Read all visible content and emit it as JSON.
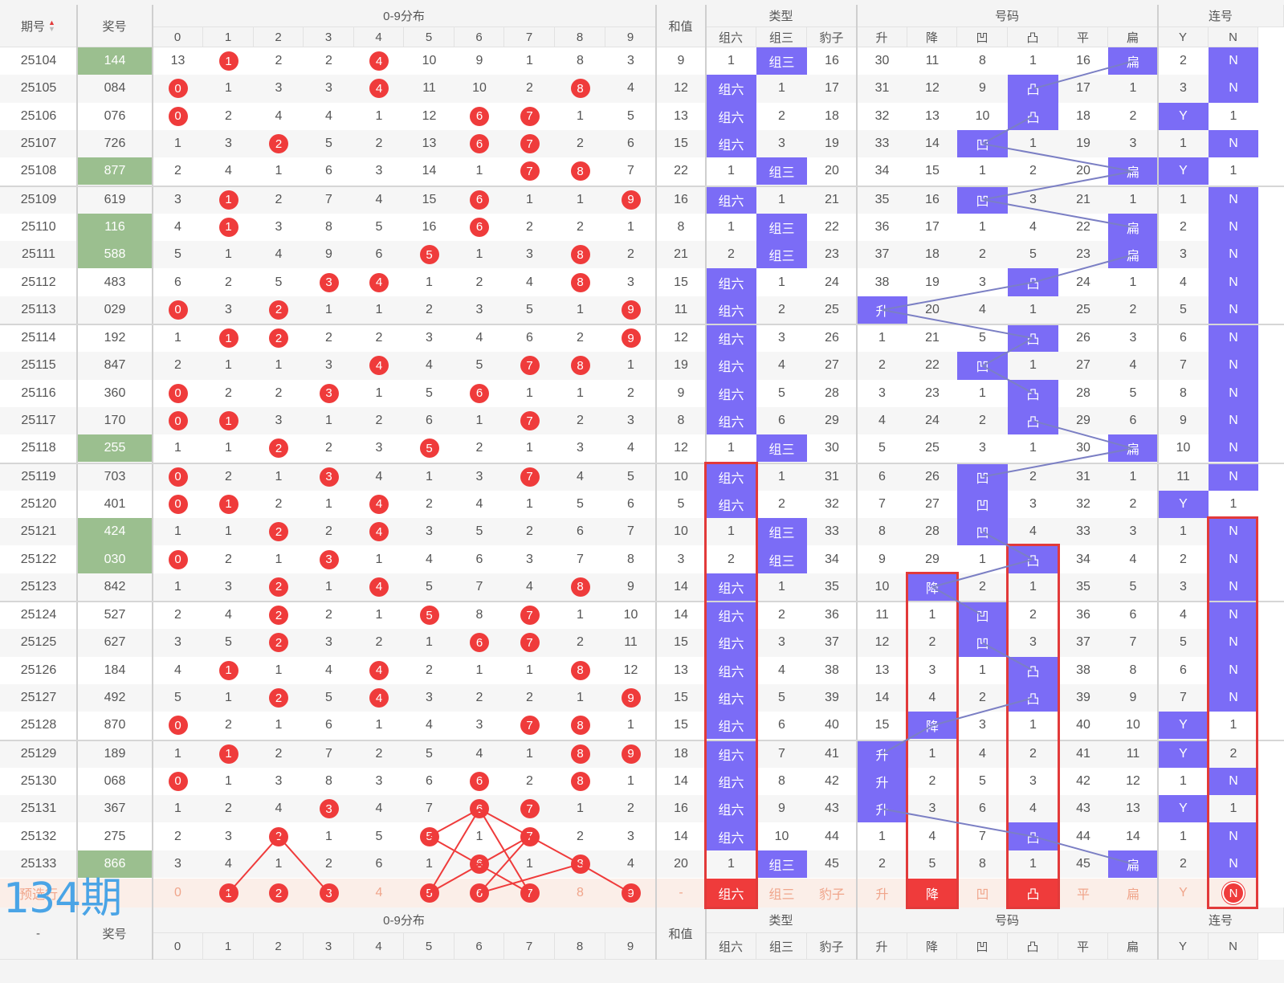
{
  "header": {
    "period": "期号",
    "prize": "奖号",
    "dist_group": "0-9分布",
    "sum": "和值",
    "type_group": "类型",
    "number_group": "号码",
    "consec_group": "连号",
    "digits": [
      "0",
      "1",
      "2",
      "3",
      "4",
      "5",
      "6",
      "7",
      "8",
      "9"
    ],
    "type_cols": [
      "组六",
      "组三",
      "豹子"
    ],
    "number_cols": [
      "升",
      "降",
      "凹",
      "凸",
      "平",
      "扁"
    ],
    "consec_cols": [
      "Y",
      "N"
    ]
  },
  "footer": {
    "period": "-",
    "prize": "奖号",
    "dist_group": "0-9分布",
    "sum": "和值",
    "type_group": "类型",
    "number_group": "号码",
    "consec_group": "连号",
    "digits": [
      "0",
      "1",
      "2",
      "3",
      "4",
      "5",
      "6",
      "7",
      "8",
      "9"
    ],
    "type_cols": [
      "组六",
      "组三",
      "豹子"
    ],
    "number_cols": [
      "升",
      "降",
      "凹",
      "凸",
      "平",
      "扁"
    ],
    "consec_cols": [
      "Y",
      "N"
    ]
  },
  "watermark": "134期",
  "forecast": {
    "label": "预选行",
    "digits": [
      "0",
      "1",
      "2",
      "3",
      "4",
      "5",
      "6",
      "7",
      "8",
      "9"
    ],
    "digits_hit": [
      false,
      true,
      true,
      true,
      false,
      true,
      true,
      true,
      false,
      true
    ],
    "sum": "-",
    "type": [
      "组六",
      "组三",
      "豹子"
    ],
    "type_hit": [
      true,
      false,
      false
    ],
    "number": [
      "升",
      "降",
      "凹",
      "凸",
      "平",
      "扁"
    ],
    "number_hit": [
      false,
      true,
      false,
      true,
      false,
      false
    ],
    "consec": [
      "Y",
      "N"
    ],
    "consec_hit": [
      false,
      true
    ]
  },
  "rows": [
    {
      "p": "25104",
      "n": "144",
      "g": true,
      "d": [
        "13",
        "1",
        "2",
        "2",
        "4",
        "10",
        "9",
        "1",
        "8",
        "3"
      ],
      "s": "9",
      "t": [
        "1",
        "组三",
        "16"
      ],
      "k": [
        "30",
        "11",
        "8",
        "1",
        "16",
        "扁"
      ],
      "c": [
        "2",
        "N"
      ]
    },
    {
      "p": "25105",
      "n": "084",
      "g": false,
      "d": [
        "0",
        "1",
        "3",
        "3",
        "4",
        "11",
        "10",
        "2",
        "8",
        "4"
      ],
      "s": "12",
      "t": [
        "组六",
        "1",
        "17"
      ],
      "k": [
        "31",
        "12",
        "9",
        "凸",
        "17",
        "1"
      ],
      "c": [
        "3",
        "N"
      ]
    },
    {
      "p": "25106",
      "n": "076",
      "g": false,
      "d": [
        "0",
        "2",
        "4",
        "4",
        "1",
        "12",
        "6",
        "7",
        "1",
        "5"
      ],
      "s": "13",
      "t": [
        "组六",
        "2",
        "18"
      ],
      "k": [
        "32",
        "13",
        "10",
        "凸",
        "18",
        "2"
      ],
      "c": [
        "Y",
        "1"
      ]
    },
    {
      "p": "25107",
      "n": "726",
      "g": false,
      "d": [
        "1",
        "3",
        "2",
        "5",
        "2",
        "13",
        "6",
        "7",
        "2",
        "6"
      ],
      "s": "15",
      "t": [
        "组六",
        "3",
        "19"
      ],
      "k": [
        "33",
        "14",
        "凹",
        "1",
        "19",
        "3"
      ],
      "c": [
        "1",
        "N"
      ]
    },
    {
      "p": "25108",
      "n": "877",
      "g": true,
      "d": [
        "2",
        "4",
        "1",
        "6",
        "3",
        "14",
        "1",
        "7",
        "8",
        "7"
      ],
      "s": "22",
      "t": [
        "1",
        "组三",
        "20"
      ],
      "k": [
        "34",
        "15",
        "1",
        "2",
        "20",
        "扁"
      ],
      "c": [
        "Y",
        "1"
      ]
    },
    {
      "p": "25109",
      "n": "619",
      "g": false,
      "d": [
        "3",
        "1",
        "2",
        "7",
        "4",
        "15",
        "6",
        "1",
        "1",
        "9"
      ],
      "s": "16",
      "t": [
        "组六",
        "1",
        "21"
      ],
      "k": [
        "35",
        "16",
        "凹",
        "3",
        "21",
        "1"
      ],
      "c": [
        "1",
        "N"
      ]
    },
    {
      "p": "25110",
      "n": "116",
      "g": true,
      "d": [
        "4",
        "1",
        "3",
        "8",
        "5",
        "16",
        "6",
        "2",
        "2",
        "1"
      ],
      "s": "8",
      "t": [
        "1",
        "组三",
        "22"
      ],
      "k": [
        "36",
        "17",
        "1",
        "4",
        "22",
        "扁"
      ],
      "c": [
        "2",
        "N"
      ]
    },
    {
      "p": "25111",
      "n": "588",
      "g": true,
      "d": [
        "5",
        "1",
        "4",
        "9",
        "6",
        "5",
        "1",
        "3",
        "8",
        "2"
      ],
      "s": "21",
      "t": [
        "2",
        "组三",
        "23"
      ],
      "k": [
        "37",
        "18",
        "2",
        "5",
        "23",
        "扁"
      ],
      "c": [
        "3",
        "N"
      ]
    },
    {
      "p": "25112",
      "n": "483",
      "g": false,
      "d": [
        "6",
        "2",
        "5",
        "3",
        "4",
        "1",
        "2",
        "4",
        "8",
        "3"
      ],
      "s": "15",
      "t": [
        "组六",
        "1",
        "24"
      ],
      "k": [
        "38",
        "19",
        "3",
        "凸",
        "24",
        "1"
      ],
      "c": [
        "4",
        "N"
      ]
    },
    {
      "p": "25113",
      "n": "029",
      "g": false,
      "d": [
        "0",
        "3",
        "2",
        "1",
        "1",
        "2",
        "3",
        "5",
        "1",
        "9"
      ],
      "s": "11",
      "t": [
        "组六",
        "2",
        "25"
      ],
      "k": [
        "升",
        "20",
        "4",
        "1",
        "25",
        "2"
      ],
      "c": [
        "5",
        "N"
      ]
    },
    {
      "p": "25114",
      "n": "192",
      "g": false,
      "d": [
        "1",
        "1",
        "2",
        "2",
        "2",
        "3",
        "4",
        "6",
        "2",
        "9"
      ],
      "s": "12",
      "t": [
        "组六",
        "3",
        "26"
      ],
      "k": [
        "1",
        "21",
        "5",
        "凸",
        "26",
        "3"
      ],
      "c": [
        "6",
        "N"
      ]
    },
    {
      "p": "25115",
      "n": "847",
      "g": false,
      "d": [
        "2",
        "1",
        "1",
        "3",
        "4",
        "4",
        "5",
        "7",
        "8",
        "1"
      ],
      "s": "19",
      "t": [
        "组六",
        "4",
        "27"
      ],
      "k": [
        "2",
        "22",
        "凹",
        "1",
        "27",
        "4"
      ],
      "c": [
        "7",
        "N"
      ]
    },
    {
      "p": "25116",
      "n": "360",
      "g": false,
      "d": [
        "0",
        "2",
        "2",
        "3",
        "1",
        "5",
        "6",
        "1",
        "1",
        "2"
      ],
      "s": "9",
      "t": [
        "组六",
        "5",
        "28"
      ],
      "k": [
        "3",
        "23",
        "1",
        "凸",
        "28",
        "5"
      ],
      "c": [
        "8",
        "N"
      ]
    },
    {
      "p": "25117",
      "n": "170",
      "g": false,
      "d": [
        "0",
        "1",
        "3",
        "1",
        "2",
        "6",
        "1",
        "7",
        "2",
        "3"
      ],
      "s": "8",
      "t": [
        "组六",
        "6",
        "29"
      ],
      "k": [
        "4",
        "24",
        "2",
        "凸",
        "29",
        "6"
      ],
      "c": [
        "9",
        "N"
      ]
    },
    {
      "p": "25118",
      "n": "255",
      "g": true,
      "d": [
        "1",
        "1",
        "2",
        "2",
        "3",
        "5",
        "2",
        "1",
        "3",
        "4"
      ],
      "s": "12",
      "t": [
        "1",
        "组三",
        "30"
      ],
      "k": [
        "5",
        "25",
        "3",
        "1",
        "30",
        "扁"
      ],
      "c": [
        "10",
        "N"
      ]
    },
    {
      "p": "25119",
      "n": "703",
      "g": false,
      "d": [
        "0",
        "2",
        "1",
        "3",
        "4",
        "1",
        "3",
        "7",
        "4",
        "5"
      ],
      "s": "10",
      "t": [
        "组六",
        "1",
        "31"
      ],
      "k": [
        "6",
        "26",
        "凹",
        "2",
        "31",
        "1"
      ],
      "c": [
        "11",
        "N"
      ]
    },
    {
      "p": "25120",
      "n": "401",
      "g": false,
      "d": [
        "0",
        "1",
        "2",
        "1",
        "4",
        "2",
        "4",
        "1",
        "5",
        "6"
      ],
      "s": "5",
      "t": [
        "组六",
        "2",
        "32"
      ],
      "k": [
        "7",
        "27",
        "凹",
        "3",
        "32",
        "2"
      ],
      "c": [
        "Y",
        "1"
      ]
    },
    {
      "p": "25121",
      "n": "424",
      "g": true,
      "d": [
        "1",
        "1",
        "2",
        "2",
        "4",
        "3",
        "5",
        "2",
        "6",
        "7"
      ],
      "s": "10",
      "t": [
        "1",
        "组三",
        "33"
      ],
      "k": [
        "8",
        "28",
        "凹",
        "4",
        "33",
        "3"
      ],
      "c": [
        "1",
        "N"
      ]
    },
    {
      "p": "25122",
      "n": "030",
      "g": true,
      "d": [
        "0",
        "2",
        "1",
        "3",
        "1",
        "4",
        "6",
        "3",
        "7",
        "8"
      ],
      "s": "3",
      "t": [
        "2",
        "组三",
        "34"
      ],
      "k": [
        "9",
        "29",
        "1",
        "凸",
        "34",
        "4"
      ],
      "c": [
        "2",
        "N"
      ]
    },
    {
      "p": "25123",
      "n": "842",
      "g": false,
      "d": [
        "1",
        "3",
        "2",
        "1",
        "4",
        "5",
        "7",
        "4",
        "8",
        "9"
      ],
      "s": "14",
      "t": [
        "组六",
        "1",
        "35"
      ],
      "k": [
        "10",
        "降",
        "2",
        "1",
        "35",
        "5"
      ],
      "c": [
        "3",
        "N"
      ]
    },
    {
      "p": "25124",
      "n": "527",
      "g": false,
      "d": [
        "2",
        "4",
        "2",
        "2",
        "1",
        "5",
        "8",
        "7",
        "1",
        "10"
      ],
      "s": "14",
      "t": [
        "组六",
        "2",
        "36"
      ],
      "k": [
        "11",
        "1",
        "凹",
        "2",
        "36",
        "6"
      ],
      "c": [
        "4",
        "N"
      ]
    },
    {
      "p": "25125",
      "n": "627",
      "g": false,
      "d": [
        "3",
        "5",
        "2",
        "3",
        "2",
        "1",
        "6",
        "7",
        "2",
        "11"
      ],
      "s": "15",
      "t": [
        "组六",
        "3",
        "37"
      ],
      "k": [
        "12",
        "2",
        "凹",
        "3",
        "37",
        "7"
      ],
      "c": [
        "5",
        "N"
      ]
    },
    {
      "p": "25126",
      "n": "184",
      "g": false,
      "d": [
        "4",
        "1",
        "1",
        "4",
        "4",
        "2",
        "1",
        "1",
        "8",
        "12"
      ],
      "s": "13",
      "t": [
        "组六",
        "4",
        "38"
      ],
      "k": [
        "13",
        "3",
        "1",
        "凸",
        "38",
        "8"
      ],
      "c": [
        "6",
        "N"
      ]
    },
    {
      "p": "25127",
      "n": "492",
      "g": false,
      "d": [
        "5",
        "1",
        "2",
        "5",
        "4",
        "3",
        "2",
        "2",
        "1",
        "9"
      ],
      "s": "15",
      "t": [
        "组六",
        "5",
        "39"
      ],
      "k": [
        "14",
        "4",
        "2",
        "凸",
        "39",
        "9"
      ],
      "c": [
        "7",
        "N"
      ]
    },
    {
      "p": "25128",
      "n": "870",
      "g": false,
      "d": [
        "0",
        "2",
        "1",
        "6",
        "1",
        "4",
        "3",
        "7",
        "8",
        "1"
      ],
      "s": "15",
      "t": [
        "组六",
        "6",
        "40"
      ],
      "k": [
        "15",
        "降",
        "3",
        "1",
        "40",
        "10"
      ],
      "c": [
        "Y",
        "1"
      ]
    },
    {
      "p": "25129",
      "n": "189",
      "g": false,
      "d": [
        "1",
        "1",
        "2",
        "7",
        "2",
        "5",
        "4",
        "1",
        "8",
        "9"
      ],
      "s": "18",
      "t": [
        "组六",
        "7",
        "41"
      ],
      "k": [
        "升",
        "1",
        "4",
        "2",
        "41",
        "11"
      ],
      "c": [
        "Y",
        "2"
      ]
    },
    {
      "p": "25130",
      "n": "068",
      "g": false,
      "d": [
        "0",
        "1",
        "3",
        "8",
        "3",
        "6",
        "6",
        "2",
        "8",
        "1"
      ],
      "s": "14",
      "t": [
        "组六",
        "8",
        "42"
      ],
      "k": [
        "升",
        "2",
        "5",
        "3",
        "42",
        "12"
      ],
      "c": [
        "1",
        "N"
      ]
    },
    {
      "p": "25131",
      "n": "367",
      "g": false,
      "d": [
        "1",
        "2",
        "4",
        "3",
        "4",
        "7",
        "6",
        "7",
        "1",
        "2"
      ],
      "s": "16",
      "t": [
        "组六",
        "9",
        "43"
      ],
      "k": [
        "升",
        "3",
        "6",
        "4",
        "43",
        "13"
      ],
      "c": [
        "Y",
        "1"
      ]
    },
    {
      "p": "25132",
      "n": "275",
      "g": false,
      "d": [
        "2",
        "3",
        "2",
        "1",
        "5",
        "5",
        "1",
        "7",
        "2",
        "3"
      ],
      "s": "14",
      "t": [
        "组六",
        "10",
        "44"
      ],
      "k": [
        "1",
        "4",
        "7",
        "凸",
        "44",
        "14"
      ],
      "c": [
        "1",
        "N"
      ]
    },
    {
      "p": "25133",
      "n": "866",
      "g": true,
      "d": [
        "3",
        "4",
        "1",
        "2",
        "6",
        "1",
        "6",
        "1",
        "8",
        "4"
      ],
      "s": "20",
      "t": [
        "1",
        "组三",
        "45"
      ],
      "k": [
        "2",
        "5",
        "8",
        "1",
        "45",
        "扁"
      ],
      "c": [
        "2",
        "N"
      ]
    }
  ],
  "hits": [
    [
      1,
      4
    ],
    [
      0,
      4,
      8
    ],
    [
      0,
      6,
      7
    ],
    [
      2,
      6,
      7
    ],
    [
      7,
      8
    ],
    [
      1,
      6,
      9
    ],
    [
      1,
      6
    ],
    [
      5,
      8
    ],
    [
      3,
      4,
      8
    ],
    [
      0,
      2,
      9
    ],
    [
      1,
      2,
      9
    ],
    [
      4,
      7,
      8
    ],
    [
      0,
      3,
      6
    ],
    [
      0,
      1,
      7
    ],
    [
      2,
      5
    ],
    [
      0,
      3,
      7
    ],
    [
      0,
      1,
      4
    ],
    [
      2,
      4
    ],
    [
      0,
      3
    ],
    [
      2,
      4,
      8
    ],
    [
      2,
      5,
      7
    ],
    [
      2,
      6,
      7
    ],
    [
      1,
      4,
      8
    ],
    [
      2,
      4,
      9
    ],
    [
      0,
      7,
      8
    ],
    [
      1,
      8,
      9
    ],
    [
      0,
      6,
      8
    ],
    [
      3,
      6,
      7
    ],
    [
      2,
      5,
      7
    ],
    [
      6,
      8
    ]
  ],
  "colors": {
    "purple": "#7b6cf6",
    "red": "#ef3b3b",
    "green": "#9bbf8f",
    "line_blue": "#7b7fc4",
    "forecast_bg": "#fbeee8",
    "forecast_text": "#f0a58b",
    "watermark": "#4aa4e6"
  }
}
